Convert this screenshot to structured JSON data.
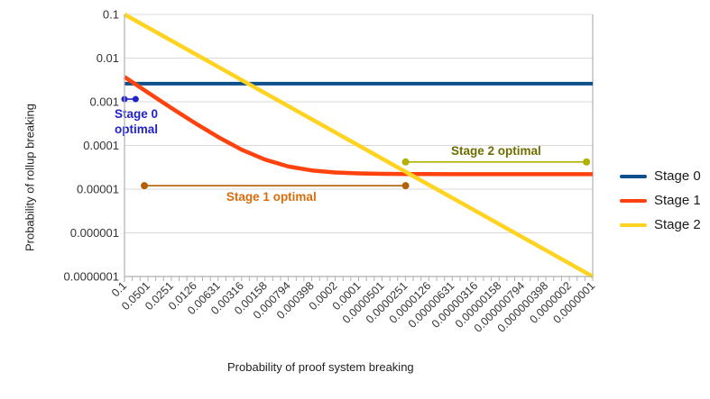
{
  "chart_data": {
    "type": "line",
    "title": "",
    "xlabel": "Probability of proof system breaking",
    "ylabel": "Probability of rollup breaking",
    "x_scale": "log",
    "y_scale": "log",
    "xlim": [
      0.1,
      1e-07
    ],
    "ylim": [
      0.1,
      1e-07
    ],
    "grid": "horizontal-major-only",
    "legend_position": "right",
    "grid_color": "#d9d9d9",
    "axis_color": "#b0b0b0",
    "tick_text_color": "#333333",
    "y_ticks": [
      {
        "label": "0.1",
        "value": 0.1
      },
      {
        "label": "0.01",
        "value": 0.01
      },
      {
        "label": "0.001",
        "value": 0.001
      },
      {
        "label": "0.0001",
        "value": 0.0001
      },
      {
        "label": "0.00001",
        "value": 1e-05
      },
      {
        "label": "0.000001",
        "value": 1e-06
      },
      {
        "label": "0.0000001",
        "value": 1e-07
      }
    ],
    "x_ticks": [
      {
        "label": "0.1",
        "value": 0.1
      },
      {
        "label": "0.0501",
        "value": 0.0501
      },
      {
        "label": "0.0251",
        "value": 0.0251
      },
      {
        "label": "0.0126",
        "value": 0.0126
      },
      {
        "label": "0.00631",
        "value": 0.00631
      },
      {
        "label": "0.00316",
        "value": 0.00316
      },
      {
        "label": "0.00158",
        "value": 0.00158
      },
      {
        "label": "0.000794",
        "value": 0.000794
      },
      {
        "label": "0.000398",
        "value": 0.000398
      },
      {
        "label": "0.0002",
        "value": 0.0001995
      },
      {
        "label": "0.0001",
        "value": 0.0001
      },
      {
        "label": "0.0000501",
        "value": 5.01e-05
      },
      {
        "label": "0.0000251",
        "value": 2.51e-05
      },
      {
        "label": "0.0000126",
        "value": 1.26e-05
      },
      {
        "label": "0.00000631",
        "value": 6.31e-06
      },
      {
        "label": "0.00000316",
        "value": 3.16e-06
      },
      {
        "label": "0.00000158",
        "value": 1.58e-06
      },
      {
        "label": "0.000000794",
        "value": 7.94e-07
      },
      {
        "label": "0.000000398",
        "value": 3.98e-07
      },
      {
        "label": "0.0000002",
        "value": 1.995e-07
      },
      {
        "label": "0.0000001",
        "value": 1e-07
      }
    ],
    "minor_tick_step_decades": 0.1,
    "series": [
      {
        "name": "Stage 0",
        "color": "#0d4f8b",
        "width": 4,
        "points": [
          [
            0.1,
            0.0026
          ],
          [
            1e-07,
            0.0026
          ]
        ]
      },
      {
        "name": "Stage 1",
        "color": "#ff420e",
        "width": 4.5,
        "points": [
          [
            0.1,
            0.0037
          ],
          [
            0.0501,
            0.00163
          ],
          [
            0.0251,
            0.00072
          ],
          [
            0.0126,
            0.00033
          ],
          [
            0.00631,
            0.000156
          ],
          [
            0.00316,
            8e-05
          ],
          [
            0.00158,
            4.75e-05
          ],
          [
            0.000794,
            3.3e-05
          ],
          [
            0.000398,
            2.69e-05
          ],
          [
            0.0002,
            2.41e-05
          ],
          [
            0.0001,
            2.29e-05
          ],
          [
            5.01e-05,
            2.24e-05
          ],
          [
            2.51e-05,
            2.22e-05
          ],
          [
            1.26e-05,
            2.21e-05
          ],
          [
            6.31e-06,
            2.2e-05
          ],
          [
            1e-06,
            2.2e-05
          ],
          [
            1e-07,
            2.2e-05
          ]
        ]
      },
      {
        "name": "Stage 2",
        "color": "#ffd320",
        "width": 4.5,
        "points": [
          [
            0.1,
            0.1
          ],
          [
            1e-07,
            1e-07
          ]
        ]
      }
    ],
    "annotations": [
      {
        "id": "stage0-optimal",
        "label": "Stage 0 optimal",
        "label_lines": [
          "Stage 0",
          "optimal"
        ],
        "line_color": "#2222cc",
        "text_color": "#2222cc",
        "x1": 0.1,
        "x2": 0.072,
        "y": 0.00115,
        "dot_radius": 3.5,
        "label_placement": "below-left"
      },
      {
        "id": "stage1-optimal",
        "label": "Stage 1 optimal",
        "label_lines": [
          "Stage 1 optimal"
        ],
        "line_color": "#b45f06",
        "text_color": "#d96c0c",
        "x1": 0.0556,
        "x2": 2.5e-05,
        "y": 1.2e-05,
        "dot_radius": 4,
        "label_placement": "below-center"
      },
      {
        "id": "stage2-optimal",
        "label": "Stage 2 optimal",
        "label_lines": [
          "Stage 2 optimal"
        ],
        "line_color": "#b1b100",
        "text_color": "#6e6e00",
        "x1": 2.5e-05,
        "x2": 1.2e-07,
        "y": 4.2e-05,
        "dot_radius": 4,
        "label_placement": "above-center"
      }
    ]
  }
}
